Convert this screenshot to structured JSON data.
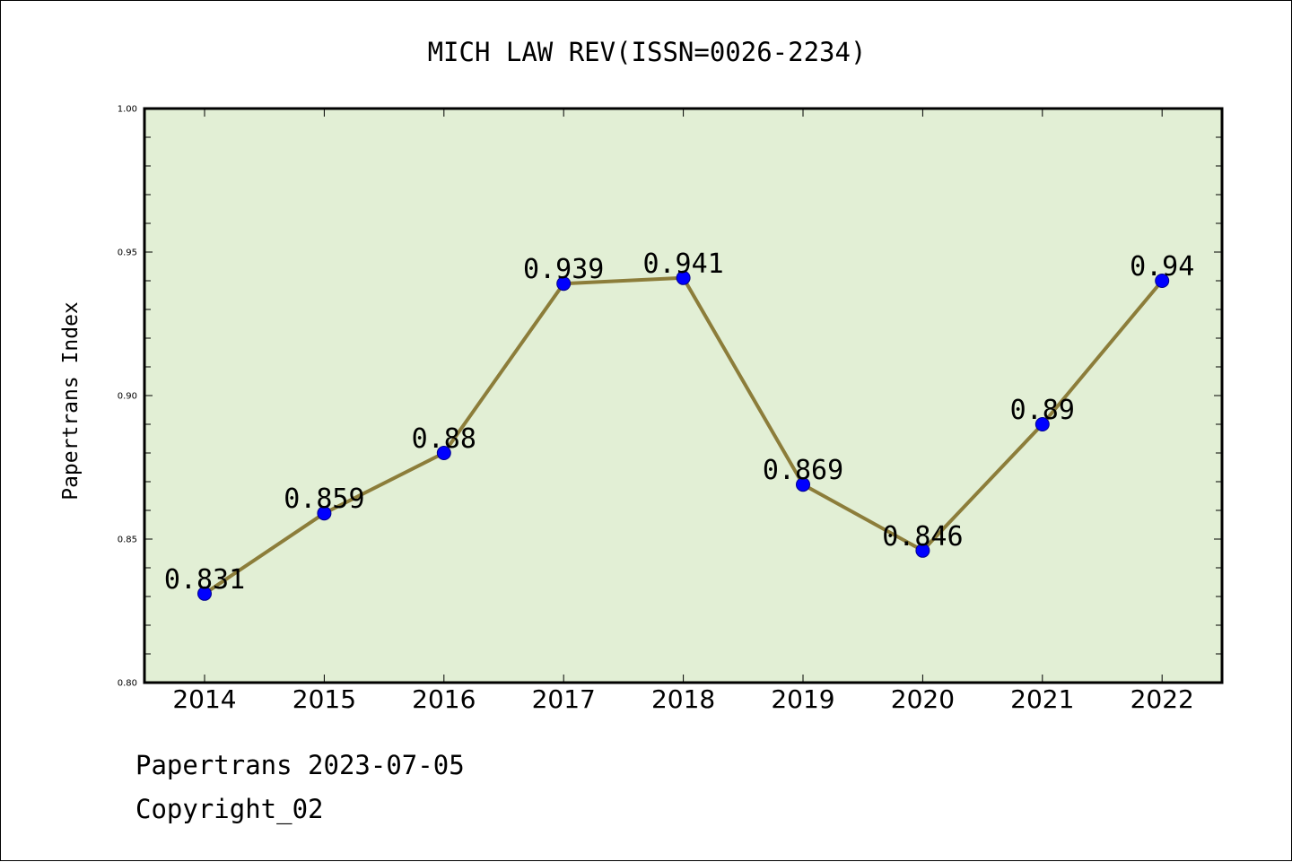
{
  "chart_data": {
    "type": "line",
    "title": "MICH LAW REV(ISSN=0026-2234)",
    "ylabel": "Papertrans Index",
    "xlabel": "",
    "categories": [
      "2014",
      "2015",
      "2016",
      "2017",
      "2018",
      "2019",
      "2020",
      "2021",
      "2022"
    ],
    "series": [
      {
        "values": [
          0.831,
          0.859,
          0.88,
          0.939,
          0.941,
          0.869,
          0.846,
          0.89,
          0.94
        ],
        "labels": [
          "0.831",
          "0.859",
          "0.88",
          "0.939",
          "0.941",
          "0.869",
          "0.846",
          "0.89",
          "0.94"
        ]
      }
    ],
    "ylim": [
      0.8,
      1.0
    ],
    "yticks": [
      {
        "value": 0.8,
        "label": "0.80"
      },
      {
        "value": 0.85,
        "label": "0.85"
      },
      {
        "value": 0.9,
        "label": "0.90"
      },
      {
        "value": 0.95,
        "label": "0.95"
      },
      {
        "value": 1.0,
        "label": "1.00"
      }
    ],
    "grid": false,
    "colors": {
      "plot_background": "#e2efd5",
      "line": "#8c7d3a",
      "marker": "#0000ff"
    }
  },
  "footer": {
    "line1": "Papertrans 2023-07-05",
    "line2": "Copyright_02"
  }
}
